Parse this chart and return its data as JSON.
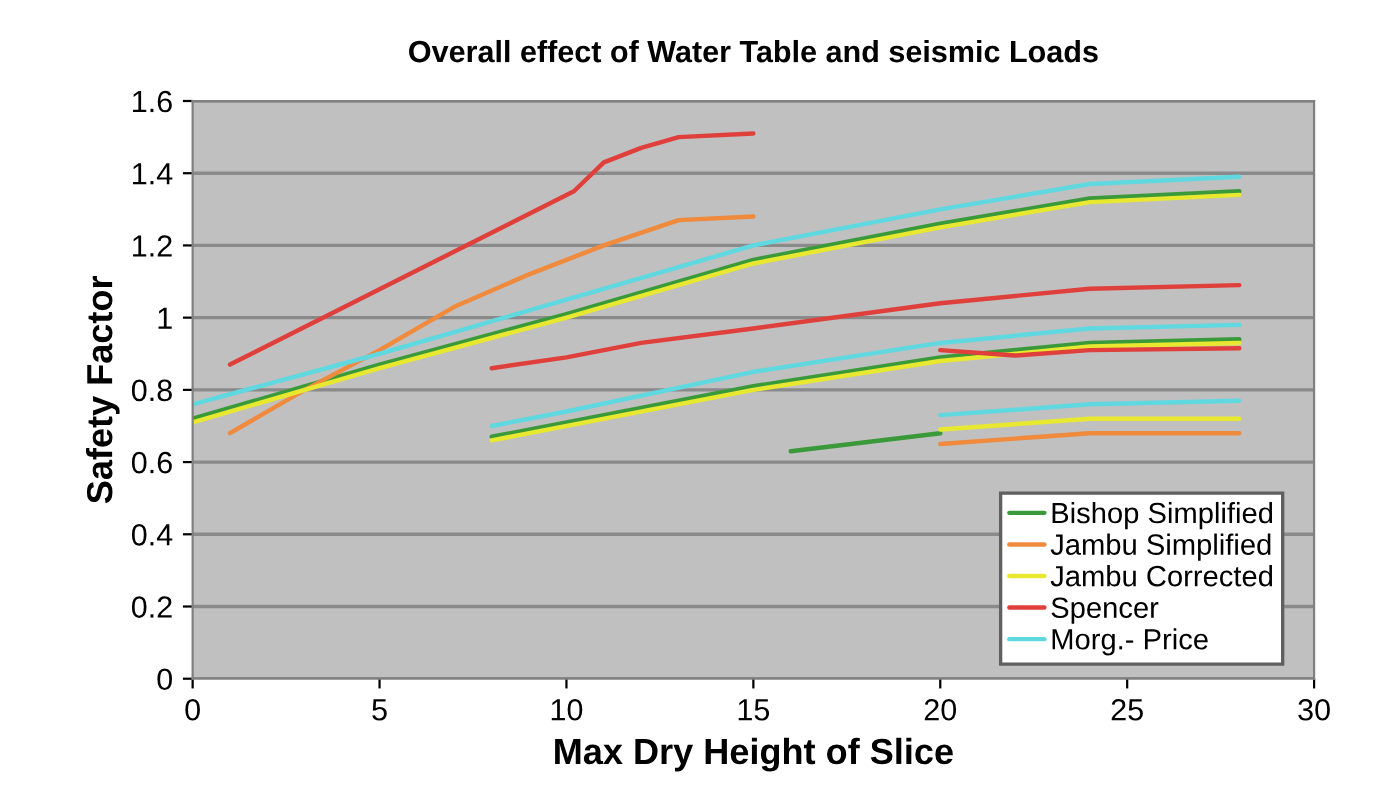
{
  "chart_data": {
    "type": "line",
    "title": "Overall effect of Water Table and seismic Loads",
    "xlabel": "Max Dry Height of Slice",
    "ylabel": "Safety Factor",
    "xlim": [
      0,
      30
    ],
    "xticks": [
      0,
      5,
      10,
      15,
      20,
      25,
      30
    ],
    "ylim": [
      0,
      1.6
    ],
    "yticks": [
      0,
      0.2,
      0.4,
      0.6,
      0.8,
      1,
      1.2,
      1.4,
      1.6
    ],
    "grid": "y",
    "legend": "bottom right",
    "line_style": "solid",
    "marker": "none",
    "series": [
      {
        "name": "Bishop Simplified",
        "color": "#3a9a3a",
        "x": [
          0,
          5,
          10,
          15,
          20,
          24,
          28,
          null,
          8,
          15,
          20,
          24,
          28,
          null,
          16,
          20
        ],
        "values": [
          0.72,
          0.87,
          1.01,
          1.16,
          1.26,
          1.33,
          1.35,
          null,
          0.67,
          0.81,
          0.89,
          0.93,
          0.94,
          null,
          0.63,
          0.68
        ]
      },
      {
        "name": "Jambu Simplified",
        "color": "#f08a3c",
        "x": [
          1,
          3,
          5,
          7,
          9,
          11,
          13,
          15,
          null,
          20,
          24,
          28
        ],
        "values": [
          0.68,
          0.8,
          0.91,
          1.03,
          1.12,
          1.2,
          1.27,
          1.28,
          null,
          0.65,
          0.68,
          0.68
        ]
      },
      {
        "name": "Jambu Corrected",
        "color": "#e8e830",
        "x": [
          0,
          5,
          10,
          15,
          20,
          24,
          28,
          null,
          8,
          15,
          20,
          24,
          28,
          null,
          20,
          24,
          28
        ],
        "values": [
          0.71,
          0.86,
          1.0,
          1.15,
          1.25,
          1.32,
          1.34,
          null,
          0.66,
          0.8,
          0.88,
          0.92,
          0.93,
          null,
          0.69,
          0.72,
          0.72
        ]
      },
      {
        "name": "Spencer",
        "color": "#e0403c",
        "x": [
          1,
          10.2,
          11,
          12,
          13,
          15,
          null,
          8,
          10,
          12,
          15,
          20,
          24,
          28,
          null,
          20,
          22,
          24,
          28
        ],
        "values": [
          0.87,
          1.35,
          1.43,
          1.47,
          1.5,
          1.51,
          null,
          0.86,
          0.89,
          0.93,
          0.97,
          1.04,
          1.08,
          1.09,
          null,
          0.91,
          0.895,
          0.91,
          0.915
        ]
      },
      {
        "name": "Morg.- Price",
        "color": "#60d8e0",
        "x": [
          0,
          5,
          10,
          15,
          20,
          24,
          28,
          null,
          8,
          10,
          15,
          20,
          24,
          28,
          null,
          20,
          24,
          28
        ],
        "values": [
          0.76,
          0.9,
          1.05,
          1.2,
          1.3,
          1.37,
          1.39,
          null,
          0.7,
          0.74,
          0.85,
          0.93,
          0.97,
          0.98,
          null,
          0.73,
          0.76,
          0.77
        ]
      }
    ]
  }
}
